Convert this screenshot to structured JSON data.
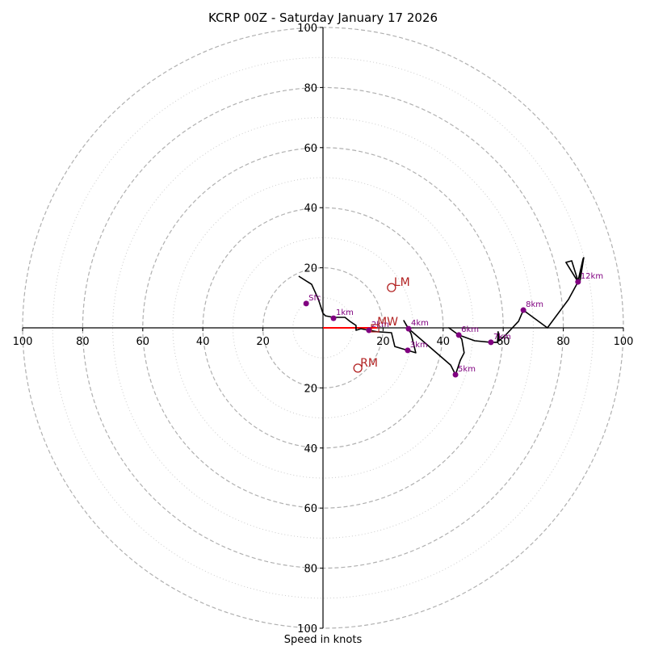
{
  "chart_data": {
    "type": "line",
    "subtype": "hodograph",
    "title": "KCRP 00Z - Saturday January 17 2026",
    "xlabel": "Speed in knots",
    "ylabel": "",
    "range_knots": [
      -100,
      100
    ],
    "rings_dashed": [
      20,
      40,
      60,
      80,
      100
    ],
    "rings_dotted": [
      10,
      30,
      50,
      70,
      90
    ],
    "x_tick_labels": [
      "100",
      "80",
      "60",
      "40",
      "20",
      "20",
      "40",
      "60",
      "80",
      "100"
    ],
    "x_tick_values": [
      -100,
      -80,
      -60,
      -40,
      -20,
      20,
      40,
      60,
      80,
      100
    ],
    "y_tick_labels": [
      "100",
      "80",
      "60",
      "40",
      "20",
      "20",
      "40",
      "60",
      "80",
      "100"
    ],
    "y_tick_values": [
      100,
      80,
      60,
      40,
      20,
      -20,
      -40,
      -60,
      -80,
      -100
    ],
    "grid": true,
    "hodograph_trace": {
      "u": [
        -8.1,
        -3.8,
        -1.6,
        0.0,
        0.8,
        3.5,
        7.3,
        8.9,
        11.0,
        11.0,
        12.6,
        15.3,
        18.0,
        22.8,
        23.9,
        28.2,
        30.9,
        29.3,
        26.9,
        28.5,
        42.5,
        44.1,
        45.7,
        47.0,
        46.2,
        45.2,
        41.9,
        45.2,
        50.5,
        55.9,
        58.1,
        58.3,
        58.6,
        60.5,
        65.1,
        66.7,
        74.7,
        81.7,
        84.9,
        80.9,
        82.8,
        84.9,
        86.6,
        85.5,
        86.8,
        84.9
      ],
      "v": [
        17.2,
        14.5,
        9.7,
        4.8,
        4.0,
        3.5,
        3.5,
        2.2,
        0.8,
        -0.8,
        -0.3,
        -0.8,
        -1.3,
        -1.6,
        -6.2,
        -7.5,
        -8.3,
        -1.9,
        2.4,
        -0.3,
        -12.4,
        -15.6,
        -10.8,
        -8.3,
        -3.8,
        -2.4,
        0.0,
        -2.4,
        -4.3,
        -4.8,
        -4.8,
        -1.3,
        -4.3,
        -2.7,
        2.2,
        5.9,
        0.0,
        9.4,
        15.3,
        21.8,
        22.3,
        15.6,
        23.1,
        15.3,
        23.4,
        15.3
      ]
    },
    "height_markers": [
      {
        "label": "Sfc",
        "u": -5.6,
        "v": 8.1
      },
      {
        "label": "1km",
        "u": 3.5,
        "v": 3.2
      },
      {
        "label": "2km",
        "u": 15.3,
        "v": -0.8
      },
      {
        "label": "3km",
        "u": 28.2,
        "v": -7.5
      },
      {
        "label": "4km",
        "u": 28.5,
        "v": -0.3
      },
      {
        "label": "5km",
        "u": 44.1,
        "v": -15.6
      },
      {
        "label": "6km",
        "u": 45.2,
        "v": -2.4
      },
      {
        "label": "7km",
        "u": 55.9,
        "v": -4.8
      },
      {
        "label": "8km",
        "u": 66.7,
        "v": 5.9
      },
      {
        "label": "12km",
        "u": 84.9,
        "v": 15.3
      }
    ],
    "storm_motion": [
      {
        "label": "LM",
        "u": 22.8,
        "v": 13.4
      },
      {
        "label": "RM",
        "u": 11.6,
        "v": -13.4
      }
    ],
    "mean_wind": {
      "label": "MW",
      "u": 17.5,
      "v": 0.0
    },
    "shear_vector": {
      "u0": 0.0,
      "v0": 0.0,
      "u1": 18.0,
      "v1": 0.0
    },
    "colors": {
      "trace": "#000000",
      "markers": "#800080",
      "storm_motion": "#b22222",
      "shear": "#ff0000",
      "grid": "#b0b0b0"
    }
  }
}
